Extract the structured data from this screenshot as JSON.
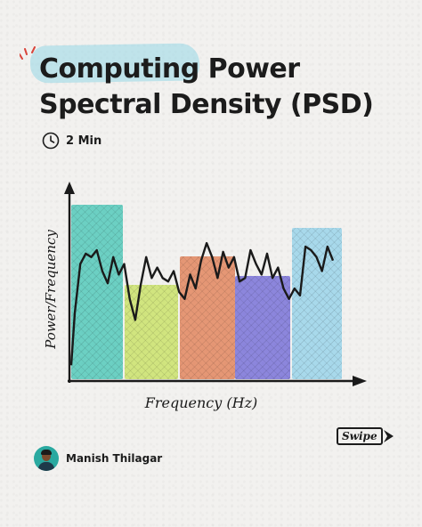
{
  "title": {
    "line1": "Computing Power",
    "line2": "Spectral Density (PSD)"
  },
  "read_time": {
    "icon": "clock-icon",
    "label": "2 Min"
  },
  "chart": {
    "xlabel": "Frequency (Hz)",
    "ylabel": "Power/Frequency",
    "band_colors": [
      "#3fc4b4",
      "#c6e05a",
      "#e0784c",
      "#6a62d6",
      "#8fd0ea"
    ],
    "signal": [
      0.38,
      0.66,
      0.72,
      0.7,
      0.74,
      0.62,
      0.55,
      0.7,
      0.6,
      0.66,
      0.46,
      0.34,
      0.54,
      0.7,
      0.58,
      0.64,
      0.58,
      0.56,
      0.62,
      0.5,
      0.46,
      0.6,
      0.52,
      0.68,
      0.78,
      0.7,
      0.58,
      0.73,
      0.64,
      0.7,
      0.56,
      0.58,
      0.74,
      0.66,
      0.6,
      0.72,
      0.58,
      0.64,
      0.52,
      0.46,
      0.52,
      0.48,
      0.76,
      0.74,
      0.7,
      0.62,
      0.76,
      0.68
    ]
  },
  "swipe": {
    "label": "Swipe"
  },
  "author": {
    "name": "Manish Thilagar"
  }
}
